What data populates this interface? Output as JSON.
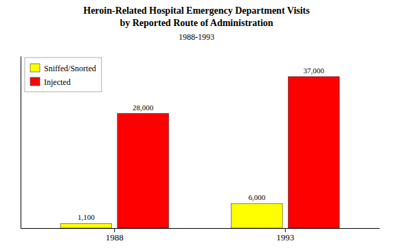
{
  "chart_data": {
    "type": "bar",
    "title": [
      "Heroin-Related Hospital Emergency Department Visits",
      "by Reported Route of Administration"
    ],
    "subtitle": "1988-1993",
    "categories": [
      "1988",
      "1993"
    ],
    "series": [
      {
        "name": "Sniffed/Snorted",
        "color": "#FFFF00",
        "values": [
          1100,
          6000
        ],
        "value_labels": [
          "1,100",
          "6,000"
        ]
      },
      {
        "name": "Injected",
        "color": "#FF0000",
        "values": [
          28000,
          37000
        ],
        "value_labels": [
          "28,000",
          "37,000"
        ]
      }
    ],
    "ylim": [
      0,
      42000
    ],
    "data_labels": true,
    "tick_labels": "x",
    "legend": "upper left"
  }
}
